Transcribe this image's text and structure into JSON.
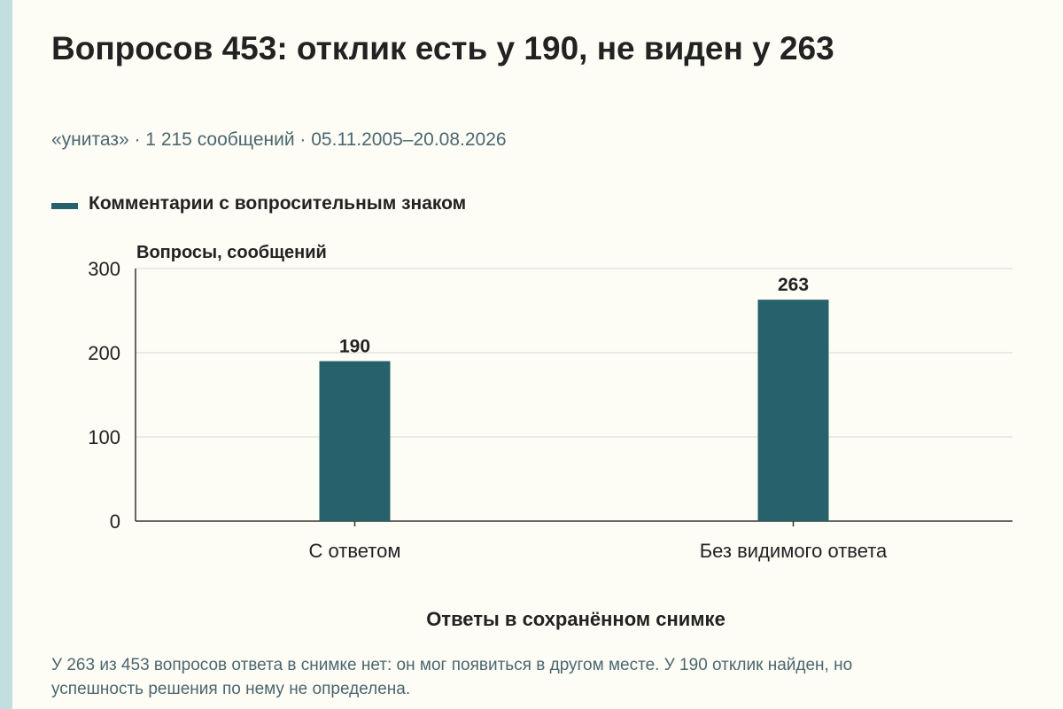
{
  "title": "Вопросов 453: отклик есть у 190, не виден у 263",
  "subtitle": "«унитаз» · 1 215 сообщений · 05.11.2005–20.08.2026",
  "footnote": "У 263 из 453 вопросов ответа в снимке нет: он мог появиться в другом месте. У 190 отклик найден, но успешность решения по нему не определена.",
  "colors": {
    "bar": "#27616b",
    "accent_strip": "#c2dfe0",
    "background": "#fdfcf5"
  },
  "chart_data": {
    "type": "bar",
    "categories": [
      "С ответом",
      "Без видимого ответа"
    ],
    "series": [
      {
        "name": "Комментарии с вопросительным знаком",
        "values": [
          190,
          263
        ]
      }
    ],
    "xlabel": "Ответы в сохранённом снимке",
    "ylabel": "Вопросы, сообщений",
    "ylim": [
      0,
      300
    ],
    "yticks": [
      0,
      100,
      200,
      300
    ],
    "grid": true,
    "legend": "top-left",
    "data_labels": true
  }
}
